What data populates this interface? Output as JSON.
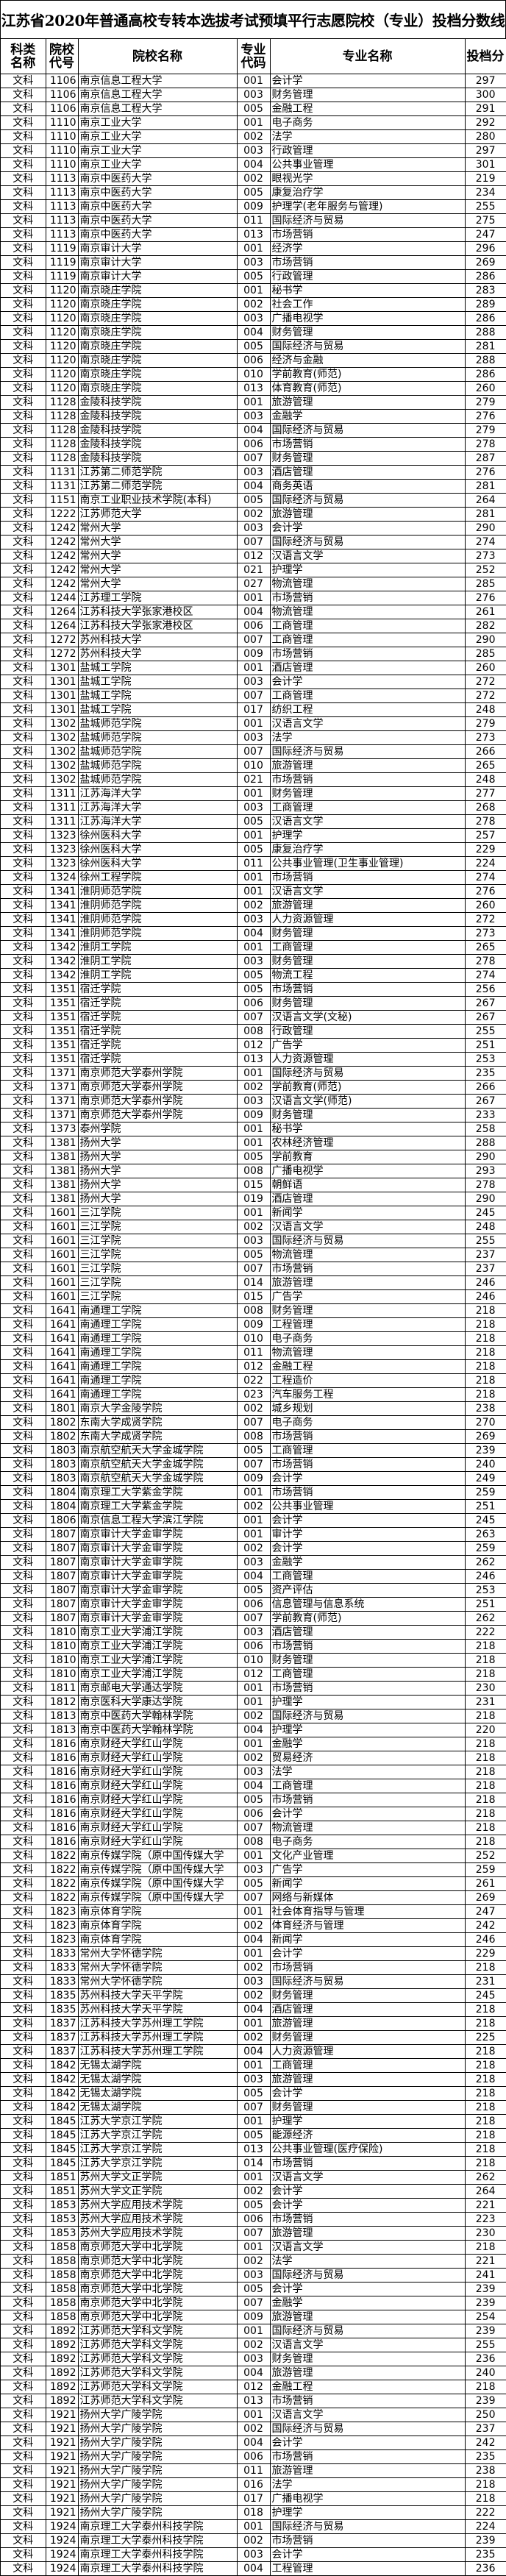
{
  "title": "江苏省2020年普通高校专转本选拔考试预填平行志愿院校（专业）投档分数线",
  "headers": [
    "科类名称",
    "院校代号",
    "院校名称",
    "专业代码",
    "专业名称",
    "投档分"
  ],
  "rows": [
    [
      "文科",
      "1106",
      "南京信息工程大学",
      "001",
      "会计学",
      "297"
    ],
    [
      "文科",
      "1106",
      "南京信息工程大学",
      "003",
      "财务管理",
      "300"
    ],
    [
      "文科",
      "1106",
      "南京信息工程大学",
      "005",
      "金融工程",
      "291"
    ],
    [
      "文科",
      "1110",
      "南京工业大学",
      "001",
      "电子商务",
      "292"
    ],
    [
      "文科",
      "1110",
      "南京工业大学",
      "002",
      "法学",
      "280"
    ],
    [
      "文科",
      "1110",
      "南京工业大学",
      "003",
      "行政管理",
      "297"
    ],
    [
      "文科",
      "1110",
      "南京工业大学",
      "004",
      "公共事业管理",
      "301"
    ],
    [
      "文科",
      "1113",
      "南京中医药大学",
      "002",
      "眼视光学",
      "219"
    ],
    [
      "文科",
      "1113",
      "南京中医药大学",
      "005",
      "康复治疗学",
      "234"
    ],
    [
      "文科",
      "1113",
      "南京中医药大学",
      "009",
      "护理学(老年服务与管理)",
      "255"
    ],
    [
      "文科",
      "1113",
      "南京中医药大学",
      "011",
      "国际经济与贸易",
      "275"
    ],
    [
      "文科",
      "1113",
      "南京中医药大学",
      "013",
      "市场营销",
      "247"
    ],
    [
      "文科",
      "1119",
      "南京审计大学",
      "001",
      "经济学",
      "296"
    ],
    [
      "文科",
      "1119",
      "南京审计大学",
      "003",
      "市场营销",
      "269"
    ],
    [
      "文科",
      "1119",
      "南京审计大学",
      "005",
      "行政管理",
      "286"
    ],
    [
      "文科",
      "1120",
      "南京晓庄学院",
      "001",
      "秘书学",
      "283"
    ],
    [
      "文科",
      "1120",
      "南京晓庄学院",
      "002",
      "社会工作",
      "289"
    ],
    [
      "文科",
      "1120",
      "南京晓庄学院",
      "003",
      "广播电视学",
      "286"
    ],
    [
      "文科",
      "1120",
      "南京晓庄学院",
      "004",
      "财务管理",
      "288"
    ],
    [
      "文科",
      "1120",
      "南京晓庄学院",
      "005",
      "国际经济与贸易",
      "281"
    ],
    [
      "文科",
      "1120",
      "南京晓庄学院",
      "006",
      "经济与金融",
      "288"
    ],
    [
      "文科",
      "1120",
      "南京晓庄学院",
      "010",
      "学前教育(师范)",
      "286"
    ],
    [
      "文科",
      "1120",
      "南京晓庄学院",
      "013",
      "体育教育(师范)",
      "260"
    ],
    [
      "文科",
      "1128",
      "金陵科技学院",
      "001",
      "旅游管理",
      "279"
    ],
    [
      "文科",
      "1128",
      "金陵科技学院",
      "003",
      "金融学",
      "276"
    ],
    [
      "文科",
      "1128",
      "金陵科技学院",
      "004",
      "国际经济与贸易",
      "279"
    ],
    [
      "文科",
      "1128",
      "金陵科技学院",
      "006",
      "市场营销",
      "278"
    ],
    [
      "文科",
      "1128",
      "金陵科技学院",
      "007",
      "财务管理",
      "287"
    ],
    [
      "文科",
      "1131",
      "江苏第二师范学院",
      "003",
      "酒店管理",
      "276"
    ],
    [
      "文科",
      "1131",
      "江苏第二师范学院",
      "004",
      "商务英语",
      "281"
    ],
    [
      "文科",
      "1151",
      "南京工业职业技术学院(本科)",
      "005",
      "国际经济与贸易",
      "264"
    ],
    [
      "文科",
      "1222",
      "江苏师范大学",
      "002",
      "旅游管理",
      "281"
    ],
    [
      "文科",
      "1242",
      "常州大学",
      "003",
      "会计学",
      "290"
    ],
    [
      "文科",
      "1242",
      "常州大学",
      "007",
      "国际经济与贸易",
      "274"
    ],
    [
      "文科",
      "1242",
      "常州大学",
      "012",
      "汉语言文学",
      "273"
    ],
    [
      "文科",
      "1242",
      "常州大学",
      "021",
      "护理学",
      "252"
    ],
    [
      "文科",
      "1242",
      "常州大学",
      "027",
      "物流管理",
      "285"
    ],
    [
      "文科",
      "1244",
      "江苏理工学院",
      "001",
      "市场营销",
      "276"
    ],
    [
      "文科",
      "1264",
      "江苏科技大学张家港校区",
      "004",
      "物流管理",
      "261"
    ],
    [
      "文科",
      "1264",
      "江苏科技大学张家港校区",
      "006",
      "工商管理",
      "282"
    ],
    [
      "文科",
      "1272",
      "苏州科技大学",
      "007",
      "工商管理",
      "290"
    ],
    [
      "文科",
      "1272",
      "苏州科技大学",
      "009",
      "市场营销",
      "285"
    ],
    [
      "文科",
      "1301",
      "盐城工学院",
      "001",
      "酒店管理",
      "260"
    ],
    [
      "文科",
      "1301",
      "盐城工学院",
      "003",
      "会计学",
      "272"
    ],
    [
      "文科",
      "1301",
      "盐城工学院",
      "007",
      "工商管理",
      "272"
    ],
    [
      "文科",
      "1301",
      "盐城工学院",
      "017",
      "纺织工程",
      "248"
    ],
    [
      "文科",
      "1302",
      "盐城师范学院",
      "001",
      "汉语言文学",
      "279"
    ],
    [
      "文科",
      "1302",
      "盐城师范学院",
      "003",
      "法学",
      "273"
    ],
    [
      "文科",
      "1302",
      "盐城师范学院",
      "007",
      "国际经济与贸易",
      "266"
    ],
    [
      "文科",
      "1302",
      "盐城师范学院",
      "010",
      "旅游管理",
      "265"
    ],
    [
      "文科",
      "1302",
      "盐城师范学院",
      "021",
      "市场营销",
      "248"
    ],
    [
      "文科",
      "1311",
      "江苏海洋大学",
      "001",
      "财务管理",
      "277"
    ],
    [
      "文科",
      "1311",
      "江苏海洋大学",
      "003",
      "工商管理",
      "268"
    ],
    [
      "文科",
      "1311",
      "江苏海洋大学",
      "005",
      "汉语言文学",
      "278"
    ],
    [
      "文科",
      "1323",
      "徐州医科大学",
      "001",
      "护理学",
      "257"
    ],
    [
      "文科",
      "1323",
      "徐州医科大学",
      "005",
      "康复治疗学",
      "229"
    ],
    [
      "文科",
      "1323",
      "徐州医科大学",
      "011",
      "公共事业管理(卫生事业管理)",
      "224"
    ],
    [
      "文科",
      "1324",
      "徐州工程学院",
      "001",
      "市场营销",
      "274"
    ],
    [
      "文科",
      "1341",
      "淮阴师范学院",
      "001",
      "汉语言文学",
      "276"
    ],
    [
      "文科",
      "1341",
      "淮阴师范学院",
      "002",
      "旅游管理",
      "260"
    ],
    [
      "文科",
      "1341",
      "淮阴师范学院",
      "003",
      "人力资源管理",
      "272"
    ],
    [
      "文科",
      "1341",
      "淮阴师范学院",
      "004",
      "财务管理",
      "273"
    ],
    [
      "文科",
      "1342",
      "淮阴工学院",
      "001",
      "工商管理",
      "265"
    ],
    [
      "文科",
      "1342",
      "淮阴工学院",
      "003",
      "财务管理",
      "278"
    ],
    [
      "文科",
      "1342",
      "淮阴工学院",
      "005",
      "物流工程",
      "274"
    ],
    [
      "文科",
      "1351",
      "宿迁学院",
      "005",
      "市场营销",
      "256"
    ],
    [
      "文科",
      "1351",
      "宿迁学院",
      "006",
      "财务管理",
      "267"
    ],
    [
      "文科",
      "1351",
      "宿迁学院",
      "007",
      "汉语言文学(文秘)",
      "267"
    ],
    [
      "文科",
      "1351",
      "宿迁学院",
      "008",
      "行政管理",
      "255"
    ],
    [
      "文科",
      "1351",
      "宿迁学院",
      "012",
      "广告学",
      "251"
    ],
    [
      "文科",
      "1351",
      "宿迁学院",
      "013",
      "人力资源管理",
      "253"
    ],
    [
      "文科",
      "1371",
      "南京师范大学泰州学院",
      "001",
      "国际经济与贸易",
      "235"
    ],
    [
      "文科",
      "1371",
      "南京师范大学泰州学院",
      "002",
      "学前教育(师范)",
      "266"
    ],
    [
      "文科",
      "1371",
      "南京师范大学泰州学院",
      "003",
      "汉语言文学(师范)",
      "267"
    ],
    [
      "文科",
      "1371",
      "南京师范大学泰州学院",
      "009",
      "财务管理",
      "233"
    ],
    [
      "文科",
      "1373",
      "泰州学院",
      "001",
      "秘书学",
      "258"
    ],
    [
      "文科",
      "1381",
      "扬州大学",
      "001",
      "农林经济管理",
      "288"
    ],
    [
      "文科",
      "1381",
      "扬州大学",
      "005",
      "学前教育",
      "290"
    ],
    [
      "文科",
      "1381",
      "扬州大学",
      "008",
      "广播电视学",
      "293"
    ],
    [
      "文科",
      "1381",
      "扬州大学",
      "015",
      "朝鲜语",
      "278"
    ],
    [
      "文科",
      "1381",
      "扬州大学",
      "019",
      "酒店管理",
      "290"
    ],
    [
      "文科",
      "1601",
      "三江学院",
      "001",
      "新闻学",
      "245"
    ],
    [
      "文科",
      "1601",
      "三江学院",
      "002",
      "汉语言文学",
      "248"
    ],
    [
      "文科",
      "1601",
      "三江学院",
      "003",
      "国际经济与贸易",
      "255"
    ],
    [
      "文科",
      "1601",
      "三江学院",
      "005",
      "物流管理",
      "237"
    ],
    [
      "文科",
      "1601",
      "三江学院",
      "007",
      "市场营销",
      "237"
    ],
    [
      "文科",
      "1601",
      "三江学院",
      "014",
      "旅游管理",
      "246"
    ],
    [
      "文科",
      "1601",
      "三江学院",
      "015",
      "广告学",
      "246"
    ],
    [
      "文科",
      "1641",
      "南通理工学院",
      "008",
      "财务管理",
      "218"
    ],
    [
      "文科",
      "1641",
      "南通理工学院",
      "009",
      "工程管理",
      "218"
    ],
    [
      "文科",
      "1641",
      "南通理工学院",
      "010",
      "电子商务",
      "218"
    ],
    [
      "文科",
      "1641",
      "南通理工学院",
      "011",
      "物流管理",
      "218"
    ],
    [
      "文科",
      "1641",
      "南通理工学院",
      "012",
      "金融工程",
      "218"
    ],
    [
      "文科",
      "1641",
      "南通理工学院",
      "022",
      "工程造价",
      "218"
    ],
    [
      "文科",
      "1641",
      "南通理工学院",
      "023",
      "汽车服务工程",
      "218"
    ],
    [
      "文科",
      "1801",
      "南京大学金陵学院",
      "002",
      "城乡规划",
      "238"
    ],
    [
      "文科",
      "1802",
      "东南大学成贤学院",
      "007",
      "电子商务",
      "270"
    ],
    [
      "文科",
      "1802",
      "东南大学成贤学院",
      "008",
      "市场营销",
      "269"
    ],
    [
      "文科",
      "1803",
      "南京航空航天大学金城学院",
      "005",
      "工商管理",
      "239"
    ],
    [
      "文科",
      "1803",
      "南京航空航天大学金城学院",
      "007",
      "市场营销",
      "240"
    ],
    [
      "文科",
      "1803",
      "南京航空航天大学金城学院",
      "009",
      "会计学",
      "249"
    ],
    [
      "文科",
      "1804",
      "南京理工大学紫金学院",
      "001",
      "市场营销",
      "259"
    ],
    [
      "文科",
      "1804",
      "南京理工大学紫金学院",
      "002",
      "公共事业管理",
      "251"
    ],
    [
      "文科",
      "1806",
      "南京信息工程大学滨江学院",
      "001",
      "会计学",
      "245"
    ],
    [
      "文科",
      "1807",
      "南京审计大学金审学院",
      "001",
      "审计学",
      "263"
    ],
    [
      "文科",
      "1807",
      "南京审计大学金审学院",
      "002",
      "会计学",
      "259"
    ],
    [
      "文科",
      "1807",
      "南京审计大学金审学院",
      "003",
      "金融学",
      "262"
    ],
    [
      "文科",
      "1807",
      "南京审计大学金审学院",
      "004",
      "工商管理",
      "246"
    ],
    [
      "文科",
      "1807",
      "南京审计大学金审学院",
      "005",
      "资产评估",
      "253"
    ],
    [
      "文科",
      "1807",
      "南京审计大学金审学院",
      "006",
      "信息管理与信息系统",
      "251"
    ],
    [
      "文科",
      "1807",
      "南京审计大学金审学院",
      "007",
      "学前教育(师范)",
      "262"
    ],
    [
      "文科",
      "1810",
      "南京工业大学浦江学院",
      "003",
      "酒店管理",
      "222"
    ],
    [
      "文科",
      "1810",
      "南京工业大学浦江学院",
      "006",
      "市场营销",
      "218"
    ],
    [
      "文科",
      "1810",
      "南京工业大学浦江学院",
      "010",
      "财务管理",
      "218"
    ],
    [
      "文科",
      "1810",
      "南京工业大学浦江学院",
      "012",
      "工商管理",
      "218"
    ],
    [
      "文科",
      "1811",
      "南京邮电大学通达学院",
      "001",
      "市场营销",
      "230"
    ],
    [
      "文科",
      "1812",
      "南京医科大学康达学院",
      "001",
      "护理学",
      "231"
    ],
    [
      "文科",
      "1813",
      "南京中医药大学翰林学院",
      "002",
      "国际经济与贸易",
      "218"
    ],
    [
      "文科",
      "1813",
      "南京中医药大学翰林学院",
      "004",
      "护理学",
      "220"
    ],
    [
      "文科",
      "1816",
      "南京财经大学红山学院",
      "001",
      "金融学",
      "218"
    ],
    [
      "文科",
      "1816",
      "南京财经大学红山学院",
      "002",
      "贸易经济",
      "218"
    ],
    [
      "文科",
      "1816",
      "南京财经大学红山学院",
      "003",
      "法学",
      "218"
    ],
    [
      "文科",
      "1816",
      "南京财经大学红山学院",
      "004",
      "工商管理",
      "218"
    ],
    [
      "文科",
      "1816",
      "南京财经大学红山学院",
      "005",
      "市场营销",
      "218"
    ],
    [
      "文科",
      "1816",
      "南京财经大学红山学院",
      "006",
      "会计学",
      "218"
    ],
    [
      "文科",
      "1816",
      "南京财经大学红山学院",
      "007",
      "物流管理",
      "218"
    ],
    [
      "文科",
      "1816",
      "南京财经大学红山学院",
      "008",
      "电子商务",
      "218"
    ],
    [
      "文科",
      "1822",
      "南京传媒学院（原中国传媒大学",
      "001",
      "文化产业管理",
      "252"
    ],
    [
      "文科",
      "1822",
      "南京传媒学院（原中国传媒大学",
      "003",
      "广告学",
      "259"
    ],
    [
      "文科",
      "1822",
      "南京传媒学院（原中国传媒大学",
      "005",
      "新闻学",
      "261"
    ],
    [
      "文科",
      "1822",
      "南京传媒学院（原中国传媒大学",
      "007",
      "网络与新媒体",
      "269"
    ],
    [
      "文科",
      "1823",
      "南京体育学院",
      "001",
      "社会体育指导与管理",
      "247"
    ],
    [
      "文科",
      "1823",
      "南京体育学院",
      "002",
      "体育经济与管理",
      "242"
    ],
    [
      "文科",
      "1823",
      "南京体育学院",
      "004",
      "新闻学",
      "246"
    ],
    [
      "文科",
      "1833",
      "常州大学怀德学院",
      "001",
      "会计学",
      "229"
    ],
    [
      "文科",
      "1833",
      "常州大学怀德学院",
      "002",
      "市场营销",
      "218"
    ],
    [
      "文科",
      "1833",
      "常州大学怀德学院",
      "003",
      "国际经济与贸易",
      "231"
    ],
    [
      "文科",
      "1835",
      "苏州科技大学天平学院",
      "002",
      "财务管理",
      "245"
    ],
    [
      "文科",
      "1835",
      "苏州科技大学天平学院",
      "004",
      "酒店管理",
      "218"
    ],
    [
      "文科",
      "1837",
      "江苏科技大学苏州理工学院",
      "001",
      "旅游管理",
      "218"
    ],
    [
      "文科",
      "1837",
      "江苏科技大学苏州理工学院",
      "002",
      "财务管理",
      "225"
    ],
    [
      "文科",
      "1837",
      "江苏科技大学苏州理工学院",
      "004",
      "人力资源管理",
      "218"
    ],
    [
      "文科",
      "1842",
      "无锡太湖学院",
      "001",
      "工商管理",
      "218"
    ],
    [
      "文科",
      "1842",
      "无锡太湖学院",
      "003",
      "旅游管理",
      "218"
    ],
    [
      "文科",
      "1842",
      "无锡太湖学院",
      "005",
      "会计学",
      "218"
    ],
    [
      "文科",
      "1842",
      "无锡太湖学院",
      "007",
      "财务管理",
      "218"
    ],
    [
      "文科",
      "1845",
      "江苏大学京江学院",
      "001",
      "护理学",
      "218"
    ],
    [
      "文科",
      "1845",
      "江苏大学京江学院",
      "005",
      "能源经济",
      "218"
    ],
    [
      "文科",
      "1845",
      "江苏大学京江学院",
      "013",
      "公共事业管理(医疗保险)",
      "218"
    ],
    [
      "文科",
      "1845",
      "江苏大学京江学院",
      "014",
      "市场营销",
      "218"
    ],
    [
      "文科",
      "1851",
      "苏州大学文正学院",
      "001",
      "汉语言文学",
      "262"
    ],
    [
      "文科",
      "1851",
      "苏州大学文正学院",
      "002",
      "会计学",
      "264"
    ],
    [
      "文科",
      "1853",
      "苏州大学应用技术学院",
      "005",
      "会计学",
      "221"
    ],
    [
      "文科",
      "1853",
      "苏州大学应用技术学院",
      "006",
      "市场营销",
      "223"
    ],
    [
      "文科",
      "1853",
      "苏州大学应用技术学院",
      "007",
      "旅游管理",
      "230"
    ],
    [
      "文科",
      "1858",
      "南京师范大学中北学院",
      "001",
      "汉语言文学",
      "218"
    ],
    [
      "文科",
      "1858",
      "南京师范大学中北学院",
      "002",
      "法学",
      "221"
    ],
    [
      "文科",
      "1858",
      "南京师范大学中北学院",
      "003",
      "国际经济与贸易",
      "241"
    ],
    [
      "文科",
      "1858",
      "南京师范大学中北学院",
      "005",
      "会计学",
      "239"
    ],
    [
      "文科",
      "1858",
      "南京师范大学中北学院",
      "007",
      "金融学",
      "239"
    ],
    [
      "文科",
      "1858",
      "南京师范大学中北学院",
      "009",
      "旅游管理",
      "254"
    ],
    [
      "文科",
      "1892",
      "江苏师范大学科文学院",
      "001",
      "国际经济与贸易",
      "239"
    ],
    [
      "文科",
      "1892",
      "江苏师范大学科文学院",
      "002",
      "汉语言文学",
      "255"
    ],
    [
      "文科",
      "1892",
      "江苏师范大学科文学院",
      "003",
      "财务管理",
      "236"
    ],
    [
      "文科",
      "1892",
      "江苏师范大学科文学院",
      "004",
      "旅游管理",
      "240"
    ],
    [
      "文科",
      "1892",
      "江苏师范大学科文学院",
      "012",
      "金融工程",
      "218"
    ],
    [
      "文科",
      "1892",
      "江苏师范大学科文学院",
      "013",
      "市场营销",
      "239"
    ],
    [
      "文科",
      "1921",
      "扬州大学广陵学院",
      "001",
      "汉语言文学",
      "250"
    ],
    [
      "文科",
      "1921",
      "扬州大学广陵学院",
      "002",
      "国际经济与贸易",
      "237"
    ],
    [
      "文科",
      "1921",
      "扬州大学广陵学院",
      "004",
      "会计学",
      "242"
    ],
    [
      "文科",
      "1921",
      "扬州大学广陵学院",
      "006",
      "市场营销",
      "235"
    ],
    [
      "文科",
      "1921",
      "扬州大学广陵学院",
      "011",
      "旅游管理",
      "238"
    ],
    [
      "文科",
      "1921",
      "扬州大学广陵学院",
      "016",
      "法学",
      "218"
    ],
    [
      "文科",
      "1921",
      "扬州大学广陵学院",
      "017",
      "广播电视学",
      "218"
    ],
    [
      "文科",
      "1921",
      "扬州大学广陵学院",
      "018",
      "护理学",
      "222"
    ],
    [
      "文科",
      "1924",
      "南京理工大学泰州科技学院",
      "001",
      "国际经济与贸易",
      "224"
    ],
    [
      "文科",
      "1924",
      "南京理工大学泰州科技学院",
      "002",
      "市场营销",
      "239"
    ],
    [
      "文科",
      "1924",
      "南京理工大学泰州科技学院",
      "003",
      "会计学",
      "235"
    ],
    [
      "文科",
      "1924",
      "南京理工大学泰州科技学院",
      "004",
      "工程管理",
      "236"
    ]
  ]
}
